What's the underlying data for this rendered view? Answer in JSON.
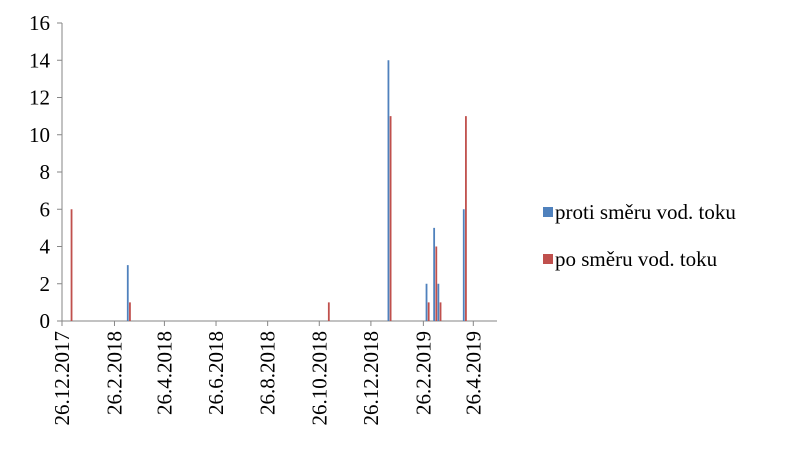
{
  "chart_data": {
    "type": "bar",
    "x": [
      "5.1.2018",
      "15.3.2018",
      "5.11.2018",
      "17.1.2019",
      "3.3.2019",
      "12.3.2019",
      "17.3.2019",
      "16.4.2019"
    ],
    "series": [
      {
        "name": "proti směru vod. toku",
        "color": "#4f81bd",
        "values": [
          0,
          3,
          0,
          14,
          2,
          5,
          2,
          6
        ]
      },
      {
        "name": "po směru vod. toku",
        "color": "#c0504d",
        "values": [
          6,
          1,
          1,
          11,
          1,
          4,
          1,
          11
        ]
      }
    ],
    "xlim": [
      "26.12.2017",
      "24.5.2019"
    ],
    "xticks": [
      "26.12.2017",
      "26.2.2018",
      "26.4.2018",
      "26.6.2018",
      "26.8.2018",
      "26.10.2018",
      "26.12.2018",
      "26.2.2019",
      "26.4.2019"
    ],
    "ylim": [
      0,
      16
    ],
    "yticks": [
      0,
      2,
      4,
      6,
      8,
      10,
      12,
      14,
      16
    ],
    "grid": false,
    "legend": "right"
  }
}
